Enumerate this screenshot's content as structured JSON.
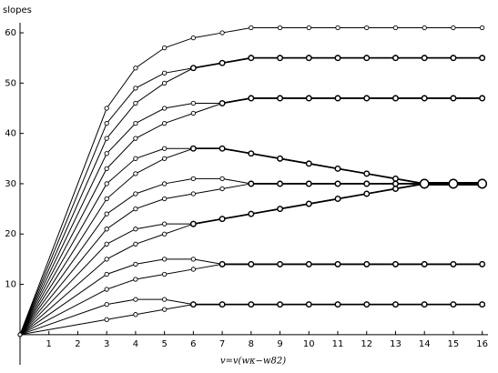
{
  "chart_data": {
    "type": "line",
    "ylabel": "slopes",
    "xlabel": "v=v(wκ−w82)",
    "color": "#000000",
    "x": [
      0,
      3,
      4,
      5,
      6,
      7,
      8,
      9,
      10,
      11,
      12,
      13,
      14,
      15,
      16
    ],
    "series": [
      {
        "values": [
          0,
          45,
          53,
          57,
          59,
          60,
          61,
          61,
          61,
          61,
          61,
          61,
          61,
          61,
          61
        ]
      },
      {
        "values": [
          0,
          42,
          49,
          52,
          53,
          54,
          55,
          55,
          55,
          55,
          55,
          55,
          55,
          55,
          55
        ]
      },
      {
        "values": [
          0,
          39,
          46,
          50,
          53,
          54,
          55,
          55,
          55,
          55,
          55,
          55,
          55,
          55,
          55
        ]
      },
      {
        "values": [
          0,
          36,
          42,
          45,
          46,
          46,
          47,
          47,
          47,
          47,
          47,
          47,
          47,
          47,
          47
        ]
      },
      {
        "values": [
          0,
          33,
          39,
          42,
          44,
          46,
          47,
          47,
          47,
          47,
          47,
          47,
          47,
          47,
          47
        ]
      },
      {
        "values": [
          0,
          30,
          35,
          37,
          37,
          37,
          36,
          35,
          34,
          33,
          32,
          31,
          30,
          30,
          30
        ]
      },
      {
        "values": [
          0,
          27,
          32,
          35,
          37,
          37,
          36,
          35,
          34,
          33,
          32,
          31,
          30,
          30,
          30
        ]
      },
      {
        "values": [
          0,
          24,
          28,
          30,
          31,
          31,
          30,
          30,
          30,
          30,
          30,
          30,
          30,
          30,
          30
        ]
      },
      {
        "values": [
          0,
          21,
          25,
          27,
          28,
          29,
          30,
          30,
          30,
          30,
          30,
          30,
          30,
          30,
          30
        ]
      },
      {
        "values": [
          0,
          18,
          21,
          22,
          22,
          23,
          24,
          25,
          26,
          27,
          28,
          29,
          30,
          30,
          30
        ]
      },
      {
        "values": [
          0,
          15,
          18,
          20,
          22,
          23,
          24,
          25,
          26,
          27,
          28,
          29,
          30,
          30,
          30
        ]
      },
      {
        "values": [
          0,
          12,
          14,
          15,
          15,
          14,
          14,
          14,
          14,
          14,
          14,
          14,
          14,
          14,
          14
        ]
      },
      {
        "values": [
          0,
          9,
          11,
          12,
          13,
          14,
          14,
          14,
          14,
          14,
          14,
          14,
          14,
          14,
          14
        ]
      },
      {
        "values": [
          0,
          6,
          7,
          7,
          6,
          6,
          6,
          6,
          6,
          6,
          6,
          6,
          6,
          6,
          6
        ]
      },
      {
        "values": [
          0,
          3,
          4,
          5,
          6,
          6,
          6,
          6,
          6,
          6,
          6,
          6,
          6,
          6,
          6
        ]
      }
    ],
    "xlim": [
      0,
      16.2
    ],
    "ylim": [
      -6,
      62
    ],
    "xticks": [
      1,
      2,
      3,
      4,
      5,
      6,
      7,
      8,
      9,
      10,
      11,
      12,
      13,
      14,
      15,
      16
    ],
    "yticks": [
      10,
      20,
      30,
      40,
      50,
      60
    ],
    "grid": false
  }
}
